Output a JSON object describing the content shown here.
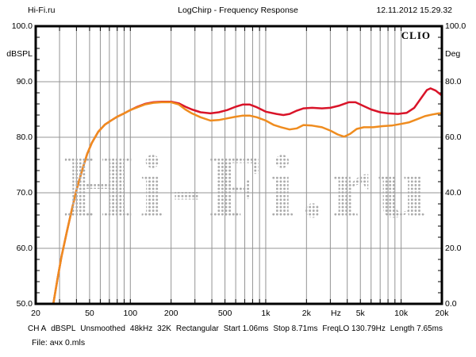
{
  "header": {
    "site": "Hi-Fi.ru",
    "title": "LogChirp - Frequency Response",
    "datetime": "12.11.2012 15.29.32"
  },
  "brand": "CLIO",
  "watermark": "Hi-Fi.ru",
  "chart_data": {
    "type": "line",
    "title": "LogChirp - Frequency Response",
    "x_axis": {
      "scale": "log",
      "min": 20,
      "max": 20000,
      "unit": "Hz",
      "ticks": [
        {
          "label": "20",
          "f": 20
        },
        {
          "label": "50",
          "f": 50
        },
        {
          "label": "100",
          "f": 100
        },
        {
          "label": "200",
          "f": 200
        },
        {
          "label": "500",
          "f": 500
        },
        {
          "label": "1k",
          "f": 1000
        },
        {
          "label": "2k",
          "f": 2000
        },
        {
          "label": "Hz",
          "f": 3300
        },
        {
          "label": "5k",
          "f": 5000
        },
        {
          "label": "10k",
          "f": 10000
        },
        {
          "label": "20k",
          "f": 20000
        }
      ]
    },
    "left_axis": {
      "label": "dBSPL",
      "min": 50,
      "max": 100,
      "gridlines": [
        90,
        80,
        70,
        60
      ],
      "ticks": [
        {
          "label": "100.0",
          "db": 100
        },
        {
          "label": "90.0",
          "db": 90
        },
        {
          "label": "80.0",
          "db": 80
        },
        {
          "label": "70.0",
          "db": 70
        },
        {
          "label": "60.0",
          "db": 60
        },
        {
          "label": "50.0",
          "db": 50
        }
      ]
    },
    "right_axis": {
      "label": "Deg",
      "min": 0,
      "max": 100,
      "ticks": [
        {
          "label": "100.0",
          "deg": 100
        },
        {
          "label": "80.0",
          "deg": 80
        },
        {
          "label": "60.0",
          "deg": 60
        },
        {
          "label": "40.0",
          "deg": 40
        },
        {
          "label": "20.0",
          "deg": 20
        },
        {
          "label": "0.0",
          "deg": 0
        }
      ]
    },
    "series": [
      {
        "name": "response-red",
        "color": "#d91429",
        "points": [
          [
            27,
            50
          ],
          [
            29,
            54.5
          ],
          [
            31,
            58.5
          ],
          [
            34,
            63
          ],
          [
            37,
            67
          ],
          [
            40,
            70.5
          ],
          [
            44,
            74
          ],
          [
            48,
            77
          ],
          [
            52,
            79
          ],
          [
            58,
            81
          ],
          [
            65,
            82.3
          ],
          [
            72,
            83
          ],
          [
            80,
            83.7
          ],
          [
            90,
            84.3
          ],
          [
            100,
            84.9
          ],
          [
            113,
            85.5
          ],
          [
            128,
            86.0
          ],
          [
            148,
            86.3
          ],
          [
            170,
            86.4
          ],
          [
            200,
            86.4
          ],
          [
            228,
            86.1
          ],
          [
            255,
            85.5
          ],
          [
            285,
            85.0
          ],
          [
            330,
            84.5
          ],
          [
            390,
            84.3
          ],
          [
            450,
            84.5
          ],
          [
            520,
            84.9
          ],
          [
            600,
            85.5
          ],
          [
            680,
            85.9
          ],
          [
            760,
            85.9
          ],
          [
            860,
            85.4
          ],
          [
            1000,
            84.6
          ],
          [
            1200,
            84.2
          ],
          [
            1350,
            84.0
          ],
          [
            1500,
            84.2
          ],
          [
            1700,
            84.8
          ],
          [
            1900,
            85.2
          ],
          [
            2200,
            85.3
          ],
          [
            2600,
            85.2
          ],
          [
            3000,
            85.3
          ],
          [
            3500,
            85.7
          ],
          [
            4100,
            86.3
          ],
          [
            4600,
            86.3
          ],
          [
            5200,
            85.7
          ],
          [
            6000,
            85.0
          ],
          [
            7000,
            84.5
          ],
          [
            8000,
            84.3
          ],
          [
            9500,
            84.2
          ],
          [
            11000,
            84.4
          ],
          [
            12500,
            85.3
          ],
          [
            14000,
            87.0
          ],
          [
            15500,
            88.5
          ],
          [
            16500,
            88.8
          ],
          [
            18000,
            88.4
          ],
          [
            20000,
            87.5
          ]
        ]
      },
      {
        "name": "response-orange",
        "color": "#ef8c1f",
        "points": [
          [
            27,
            50
          ],
          [
            29,
            54.5
          ],
          [
            31,
            58.5
          ],
          [
            34,
            63
          ],
          [
            37,
            67
          ],
          [
            40,
            70.5
          ],
          [
            44,
            74
          ],
          [
            48,
            77
          ],
          [
            52,
            79
          ],
          [
            58,
            81
          ],
          [
            65,
            82.3
          ],
          [
            72,
            83
          ],
          [
            80,
            83.7
          ],
          [
            90,
            84.3
          ],
          [
            100,
            84.9
          ],
          [
            113,
            85.4
          ],
          [
            128,
            85.9
          ],
          [
            148,
            86.2
          ],
          [
            170,
            86.3
          ],
          [
            200,
            86.3
          ],
          [
            228,
            85.9
          ],
          [
            255,
            85.0
          ],
          [
            285,
            84.3
          ],
          [
            330,
            83.6
          ],
          [
            390,
            83.0
          ],
          [
            450,
            83.1
          ],
          [
            520,
            83.4
          ],
          [
            600,
            83.7
          ],
          [
            680,
            83.9
          ],
          [
            760,
            83.9
          ],
          [
            860,
            83.6
          ],
          [
            1000,
            83.0
          ],
          [
            1150,
            82.2
          ],
          [
            1300,
            81.8
          ],
          [
            1500,
            81.4
          ],
          [
            1700,
            81.6
          ],
          [
            1900,
            82.2
          ],
          [
            2200,
            82.1
          ],
          [
            2600,
            81.8
          ],
          [
            3000,
            81.2
          ],
          [
            3400,
            80.5
          ],
          [
            3800,
            80.1
          ],
          [
            4200,
            80.6
          ],
          [
            4700,
            81.5
          ],
          [
            5300,
            81.8
          ],
          [
            6200,
            81.8
          ],
          [
            7300,
            82.0
          ],
          [
            8500,
            82.1
          ],
          [
            10000,
            82.4
          ],
          [
            11500,
            82.7
          ],
          [
            13000,
            83.2
          ],
          [
            15000,
            83.8
          ],
          [
            17000,
            84.1
          ],
          [
            19000,
            84.3
          ],
          [
            20000,
            84.3
          ]
        ]
      }
    ],
    "grid_color": "#949494",
    "border_color": "#000000"
  },
  "status_bar": {
    "items": [
      "CH A",
      "dBSPL",
      "Unsmoothed",
      "48kHz",
      "32K",
      "Rectangular",
      "Start 1.06ms",
      "Stop 8.71ms",
      "FreqLO 130.79Hz",
      "Length 7.65ms"
    ]
  },
  "file_line": "File: ачх 0.mls"
}
